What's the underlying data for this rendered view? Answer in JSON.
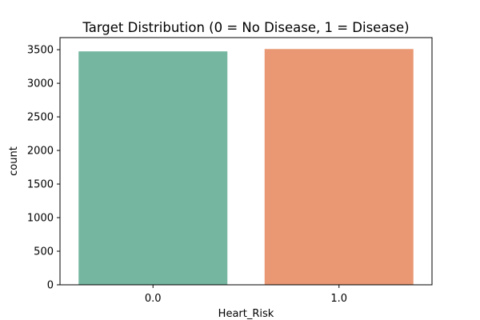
{
  "chart_data": {
    "type": "bar",
    "title": "Target Distribution (0 = No Disease, 1 = Disease)",
    "xlabel": "Heart_Risk",
    "ylabel": "count",
    "categories": [
      "0.0",
      "1.0"
    ],
    "values": [
      3475,
      3510
    ],
    "colors": [
      "#75b6a1",
      "#e99873"
    ],
    "ylim": [
      0,
      3680
    ],
    "yticks": [
      0,
      500,
      1000,
      1500,
      2000,
      2500,
      3000,
      3500
    ],
    "grid": false,
    "legend": "none"
  }
}
